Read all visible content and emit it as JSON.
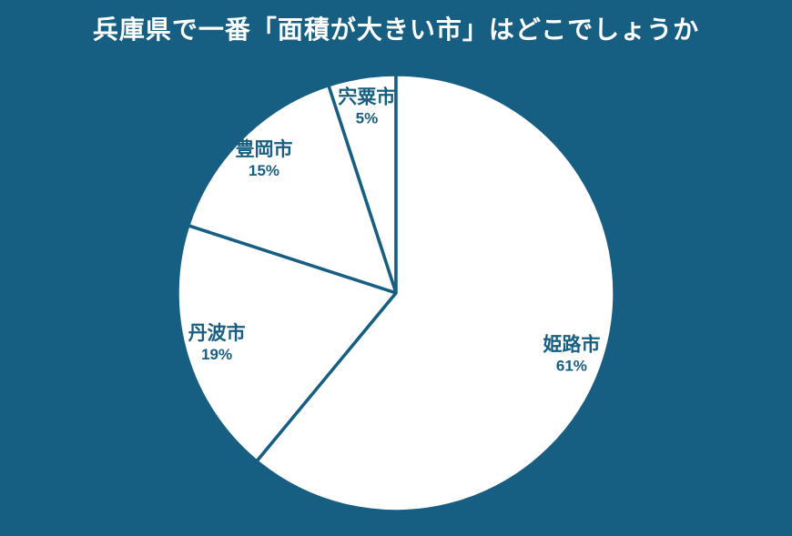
{
  "page": {
    "background": "#175E83",
    "title_color": "#FFFFFF"
  },
  "chart_data": {
    "type": "pie",
    "title": "兵庫県で一番「面積が大きい市」はどこでしょうか",
    "categories": [
      "宍粟市",
      "豊岡市",
      "丹波市",
      "姫路市"
    ],
    "values": [
      5,
      15,
      19,
      61
    ],
    "value_labels": [
      "5%",
      "15%",
      "19%",
      "61%"
    ],
    "unit": "%",
    "start_angle": "top",
    "direction": "counterclockwise",
    "slice_fill": "#FFFFFF",
    "edge_color": "#175E83",
    "label_color": "#175E83",
    "background_color": "#175E83",
    "legend_position": "none",
    "labels_inside": true
  }
}
